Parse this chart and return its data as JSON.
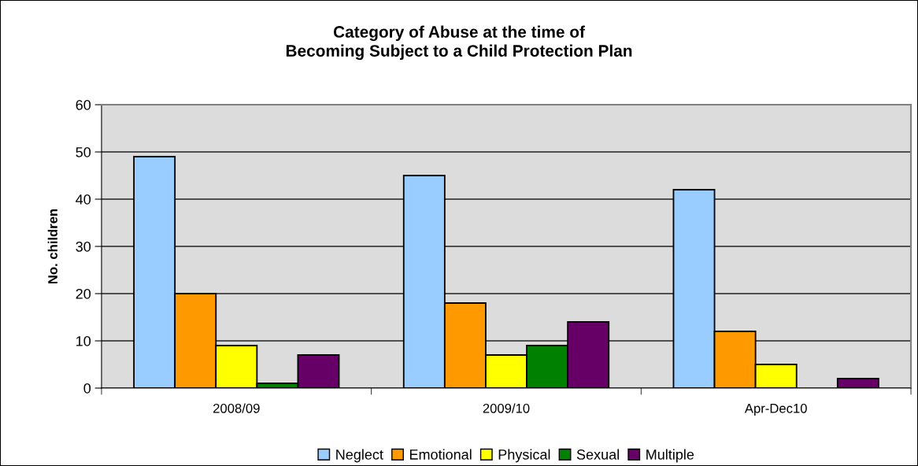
{
  "chart_data": {
    "type": "bar",
    "title": "Category of Abuse at the time of\nBecoming Subject to a Child Protection Plan",
    "ylabel": "No. children",
    "categories": [
      "2008/09",
      "2009/10",
      "Apr-Dec10"
    ],
    "series": [
      {
        "name": "Neglect",
        "color": "#99ccff",
        "values": [
          49,
          45,
          42
        ]
      },
      {
        "name": "Emotional",
        "color": "#ff9900",
        "values": [
          20,
          18,
          12
        ]
      },
      {
        "name": "Physical",
        "color": "#ffff00",
        "values": [
          9,
          7,
          5
        ]
      },
      {
        "name": "Sexual",
        "color": "#008000",
        "values": [
          1,
          9,
          null
        ]
      },
      {
        "name": "Multiple",
        "color": "#660066",
        "values": [
          7,
          14,
          2
        ]
      }
    ],
    "ylim": [
      0,
      60
    ],
    "yticks": [
      0,
      10,
      20,
      30,
      40,
      50,
      60
    ],
    "grid": "y",
    "legend": "bottom"
  }
}
